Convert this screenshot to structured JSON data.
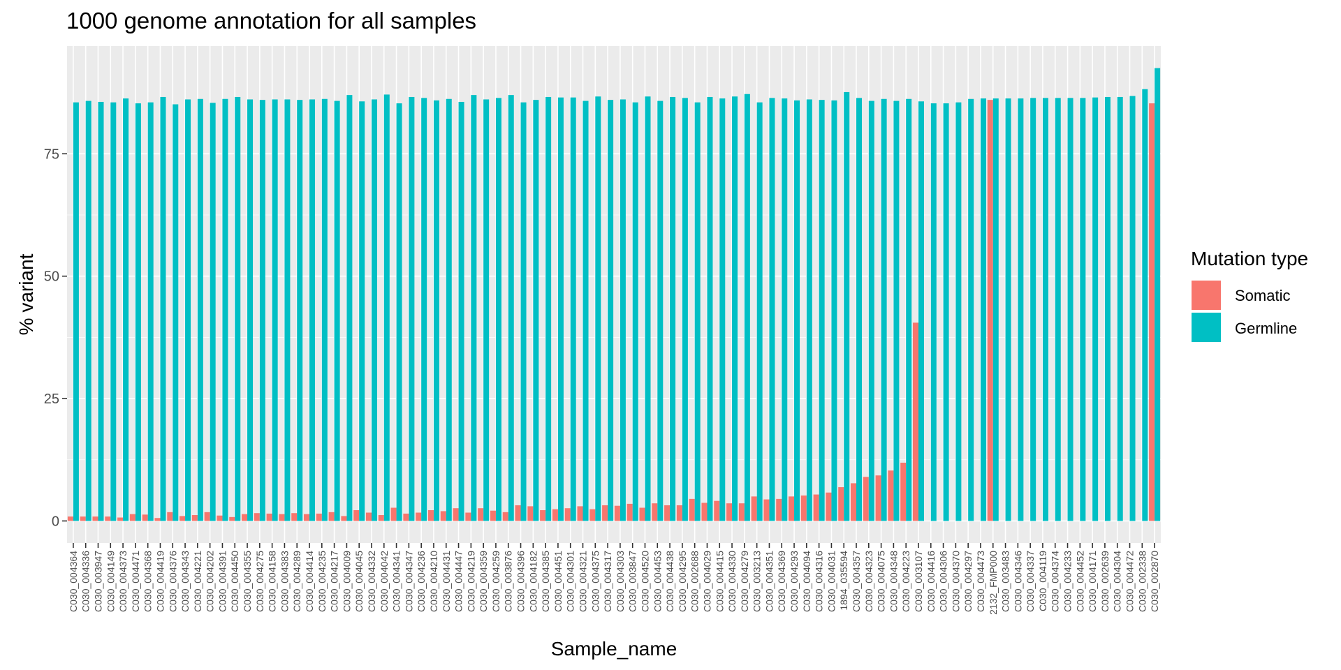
{
  "chart_data": {
    "type": "bar",
    "title": "1000 genome annotation for all samples",
    "xlabel": "Sample_name",
    "ylabel": "% variant",
    "ylim": [
      -4.5,
      97
    ],
    "yticks": [
      0,
      25,
      50,
      75
    ],
    "grid": true,
    "legend_title": "Mutation type",
    "legend_position": "right",
    "categories": [
      "C030_004364",
      "C030_004336",
      "C030_003947",
      "C030_004149",
      "C030_004373",
      "C030_004471",
      "C030_004368",
      "C030_004419",
      "C030_004376",
      "C030_004343",
      "C030_004221",
      "C030_004202",
      "C030_004391",
      "C030_004450",
      "C030_004355",
      "C030_004275",
      "C030_004158",
      "C030_004383",
      "C030_004289",
      "C030_004414",
      "C030_004235",
      "C030_004217",
      "C030_004009",
      "C030_004045",
      "C030_004332",
      "C030_004042",
      "C030_004341",
      "C030_004347",
      "C030_004236",
      "C030_004210",
      "C030_004431",
      "C030_004447",
      "C030_004219",
      "C030_004359",
      "C030_004259",
      "C030_003876",
      "C030_004396",
      "C030_004182",
      "C030_004385",
      "C030_004451",
      "C030_004301",
      "C030_004321",
      "C030_004375",
      "C030_004317",
      "C030_004303",
      "C030_003847",
      "C030_004520",
      "C030_004453",
      "C030_004438",
      "C030_004295",
      "C030_002688",
      "C030_004029",
      "C030_004415",
      "C030_004330",
      "C030_004279",
      "C030_003213",
      "C030_004351",
      "C030_004369",
      "C030_004293",
      "C030_004094",
      "C030_004316",
      "C030_004031",
      "1894_035594",
      "C030_004357",
      "C030_004323",
      "C030_004075",
      "C030_004348",
      "C030_004223",
      "C030_003107",
      "C030_004416",
      "C030_004306",
      "C030_004370",
      "C030_004297",
      "C030_004473",
      "2132_FMP000",
      "C030_003483",
      "C030_004346",
      "C030_004337",
      "C030_004119",
      "C030_004374",
      "C030_004233",
      "C030_004452",
      "C030_004171",
      "C030_002639",
      "C030_004304",
      "C030_004472",
      "C030_002338",
      "C030_002870"
    ],
    "series": [
      {
        "name": "Somatic",
        "color": "#F8766D",
        "values": [
          0.9,
          0.9,
          0.9,
          0.9,
          0.7,
          1.4,
          1.3,
          0.6,
          1.8,
          1.0,
          1.2,
          1.8,
          1.1,
          0.8,
          1.4,
          1.6,
          1.5,
          1.4,
          1.6,
          1.4,
          1.5,
          1.8,
          1.0,
          2.2,
          1.7,
          1.2,
          2.7,
          1.5,
          1.7,
          2.2,
          2.0,
          2.6,
          1.7,
          2.6,
          2.1,
          1.8,
          3.2,
          3.0,
          2.2,
          2.4,
          2.6,
          3.0,
          2.4,
          3.2,
          3.1,
          3.5,
          2.7,
          3.6,
          3.2,
          3.2,
          4.5,
          3.7,
          4.1,
          3.6,
          3.6,
          5.0,
          4.4,
          4.5,
          5.0,
          5.2,
          5.4,
          5.8,
          6.9,
          7.7,
          9.0,
          9.3,
          10.3,
          11.9,
          40.5,
          0,
          0,
          0,
          0,
          0,
          86.0,
          0,
          0,
          0,
          0,
          0,
          0,
          0,
          0,
          0,
          0,
          0,
          0,
          85.3
        ]
      },
      {
        "name": "Germline",
        "color": "#00BFC4",
        "values": [
          85.5,
          85.8,
          85.6,
          85.5,
          86.3,
          85.3,
          85.5,
          86.6,
          85.1,
          86.1,
          86.2,
          85.4,
          86.2,
          86.6,
          86.1,
          86.0,
          86.1,
          86.1,
          86.0,
          86.1,
          86.2,
          85.8,
          87.0,
          85.7,
          86.1,
          87.1,
          85.3,
          86.6,
          86.4,
          85.9,
          86.2,
          85.6,
          87.0,
          86.1,
          86.4,
          87.0,
          85.5,
          86.0,
          86.6,
          86.5,
          86.5,
          85.8,
          86.7,
          86.0,
          86.1,
          85.5,
          86.7,
          85.8,
          86.6,
          86.4,
          85.5,
          86.6,
          86.3,
          86.7,
          87.2,
          85.5,
          86.4,
          86.3,
          85.9,
          86.1,
          86.0,
          85.9,
          87.6,
          86.4,
          85.8,
          86.2,
          85.8,
          86.2,
          85.7,
          85.3,
          85.3,
          85.5,
          86.2,
          86.3,
          86.3,
          86.3,
          86.3,
          86.4,
          86.4,
          86.4,
          86.4,
          86.4,
          86.5,
          86.6,
          86.6,
          86.8,
          88.2,
          92.5
        ]
      }
    ]
  }
}
